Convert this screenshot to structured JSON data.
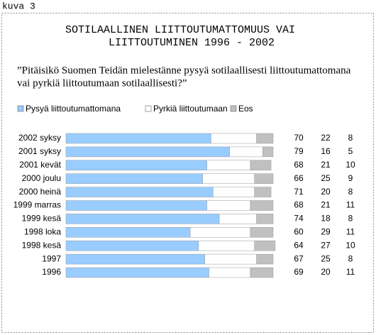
{
  "figure_label": "kuva 3",
  "chart_data": {
    "type": "stacked-bar-horizontal",
    "title": [
      "SOTILAALLINEN LIITTOUTUMATTOMUUS VAI",
      "LIITTOUTUMINEN 1996 - 2002"
    ],
    "question": [
      "”Pitäisikö Suomen Teidän mielestänne pysyä sotilaallisesti liittoutumattomana",
      "vai pyrkiä liittoutumaan sotilaallisesti?”"
    ],
    "categories": [
      "2002 syksy",
      "2001 syksy",
      "2001 kevät",
      "2000 joulu",
      "2000 heinä",
      "1999 marras",
      "1999 kesä",
      "1998 loka",
      "1998 kesä",
      "1997",
      "1996"
    ],
    "series": [
      {
        "name": "Pysyä liittoutumattomana",
        "color": "#99ccff",
        "values": [
          70,
          79,
          68,
          66,
          71,
          68,
          74,
          60,
          64,
          67,
          69
        ]
      },
      {
        "name": "Pyrkiä liittoutumaan",
        "color": "#ffffff",
        "values": [
          22,
          16,
          21,
          25,
          20,
          21,
          18,
          29,
          27,
          25,
          20
        ]
      },
      {
        "name": "Eos",
        "color": "#c0c0c0",
        "values": [
          8,
          5,
          10,
          9,
          8,
          11,
          8,
          11,
          10,
          8,
          11
        ]
      }
    ],
    "xlim": [
      0,
      100
    ],
    "legend": "top"
  }
}
